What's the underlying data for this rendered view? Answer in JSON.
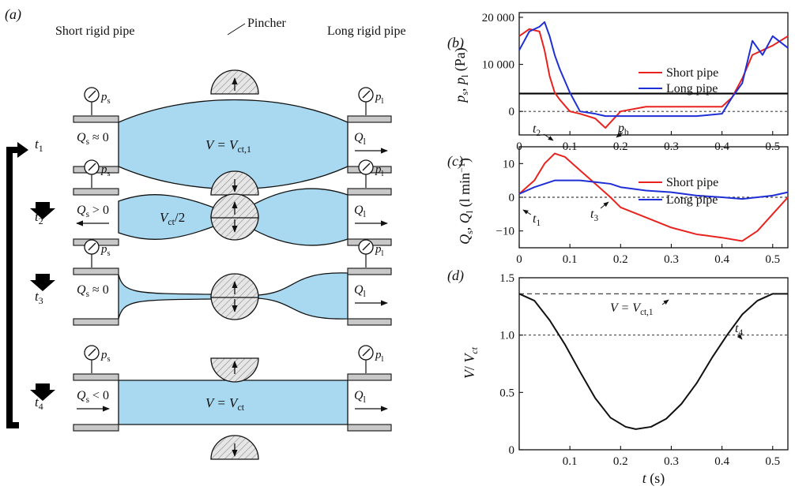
{
  "panel_labels": {
    "a": "(a)",
    "b": "(b)",
    "c": "(c)",
    "d": "(d)"
  },
  "schematic": {
    "short_pipe_title": "Short rigid pipe",
    "long_pipe_title": "Long rigid pipe",
    "pincher_label": "Pincher",
    "ps": "p",
    "ps_sub": "s",
    "pl": "p",
    "pl_sub": "l",
    "stages": [
      {
        "time": "t",
        "time_sub": "1",
        "qs": "Q",
        "qs_sub": "s",
        "qs_rel": " ≈ 0",
        "ql": "Q",
        "ql_sub": "l",
        "vol": "V = V",
        "vol_sub": "ct,1"
      },
      {
        "time": "t",
        "time_sub": "2",
        "qs": "Q",
        "qs_sub": "s",
        "qs_rel": " > 0",
        "ql": "Q",
        "ql_sub": "l",
        "vol": "V",
        "vol_sub": "ct",
        "vol_tail": "/2"
      },
      {
        "time": "t",
        "time_sub": "3",
        "qs": "Q",
        "qs_sub": "s",
        "qs_rel": " ≈ 0",
        "ql": "Q",
        "ql_sub": "l"
      },
      {
        "time": "t",
        "time_sub": "4",
        "qs": "Q",
        "qs_sub": "s",
        "qs_rel": " < 0",
        "ql": "Q",
        "ql_sub": "l",
        "vol": "V = V",
        "vol_sub": "ct"
      }
    ]
  },
  "colors": {
    "short_pipe": "#e8231f",
    "long_pipe": "#1f2fd6",
    "fluid": "#a9d9f0"
  },
  "chart_data": [
    {
      "panel": "b",
      "type": "line",
      "ylabel": "p_s, p_l (Pa)",
      "xlim": [
        0,
        0.53
      ],
      "ylim": [
        -5000,
        21000
      ],
      "yticks": [
        "0",
        "10 000",
        "20 000"
      ],
      "xticks": [
        "0",
        "0.1",
        "0.2",
        "0.3",
        "0.4",
        "0.5"
      ],
      "annotations": [
        "t2",
        "pb"
      ],
      "reference_lines": [
        {
          "y": 3800,
          "style": "solid",
          "label": "pb"
        },
        {
          "y": 0,
          "style": "dotted"
        }
      ],
      "x": [
        0,
        0.02,
        0.04,
        0.05,
        0.06,
        0.07,
        0.08,
        0.1,
        0.12,
        0.15,
        0.17,
        0.2,
        0.25,
        0.3,
        0.35,
        0.4,
        0.42,
        0.44,
        0.46,
        0.48,
        0.5,
        0.53
      ],
      "series": [
        {
          "name": "Short pipe",
          "color": "#e8231f",
          "values": [
            16000,
            17500,
            17000,
            13000,
            7500,
            4000,
            2500,
            0,
            -500,
            -1500,
            -3500,
            0,
            1000,
            1000,
            1000,
            1000,
            3000,
            7000,
            12000,
            13000,
            14000,
            16000
          ]
        },
        {
          "name": "Long pipe",
          "color": "#1f2fd6",
          "values": [
            13000,
            17000,
            18000,
            19000,
            16000,
            12000,
            9000,
            4000,
            0,
            -500,
            -1000,
            -1000,
            -1000,
            -1000,
            -1000,
            -500,
            3000,
            6000,
            15000,
            12000,
            16000,
            13500
          ]
        }
      ]
    },
    {
      "panel": "c",
      "type": "line",
      "ylabel": "Q_s, Q_l (l min^-1)",
      "xlim": [
        0,
        0.53
      ],
      "ylim": [
        -15,
        15
      ],
      "yticks": [
        "−10",
        "0",
        "10"
      ],
      "xticks": [
        "0",
        "0.1",
        "0.2",
        "0.3",
        "0.4",
        "0.5"
      ],
      "annotations": [
        "t1",
        "t3"
      ],
      "reference_lines": [
        {
          "y": 0,
          "style": "dotted"
        }
      ],
      "x": [
        0,
        0.03,
        0.05,
        0.07,
        0.09,
        0.12,
        0.15,
        0.18,
        0.2,
        0.25,
        0.3,
        0.35,
        0.4,
        0.44,
        0.47,
        0.5,
        0.53
      ],
      "series": [
        {
          "name": "Short pipe",
          "color": "#e8231f",
          "values": [
            1,
            5,
            10,
            13,
            12,
            8,
            4,
            0,
            -3,
            -6,
            -9,
            -11,
            -12,
            -13,
            -10,
            -5,
            0
          ]
        },
        {
          "name": "Long pipe",
          "color": "#1f2fd6",
          "values": [
            1,
            3,
            4,
            5,
            5,
            5,
            4.5,
            4,
            3,
            2,
            1.5,
            0.5,
            0,
            -0.5,
            0,
            0.5,
            1.5
          ]
        }
      ]
    },
    {
      "panel": "d",
      "type": "line",
      "ylabel": "V/ V_ct",
      "xlabel": "t (s)",
      "xlim": [
        0,
        0.53
      ],
      "ylim": [
        0,
        1.5
      ],
      "yticks": [
        "0",
        "0.5",
        "1.0",
        "1.5"
      ],
      "xticks": [
        "0.1",
        "0.2",
        "0.3",
        "0.4",
        "0.5"
      ],
      "annotations": [
        "V = V_ct,1",
        "t4"
      ],
      "reference_lines": [
        {
          "y": 1.36,
          "style": "dashed"
        },
        {
          "y": 1.0,
          "style": "dotted"
        }
      ],
      "x": [
        0,
        0.03,
        0.06,
        0.09,
        0.12,
        0.15,
        0.18,
        0.21,
        0.23,
        0.26,
        0.29,
        0.32,
        0.35,
        0.38,
        0.41,
        0.44,
        0.47,
        0.5,
        0.53
      ],
      "series": [
        {
          "name": "V/Vct",
          "color": "#111111",
          "values": [
            1.36,
            1.3,
            1.13,
            0.92,
            0.68,
            0.45,
            0.28,
            0.2,
            0.18,
            0.2,
            0.27,
            0.4,
            0.58,
            0.8,
            1.0,
            1.18,
            1.3,
            1.36,
            1.36
          ]
        }
      ]
    }
  ]
}
